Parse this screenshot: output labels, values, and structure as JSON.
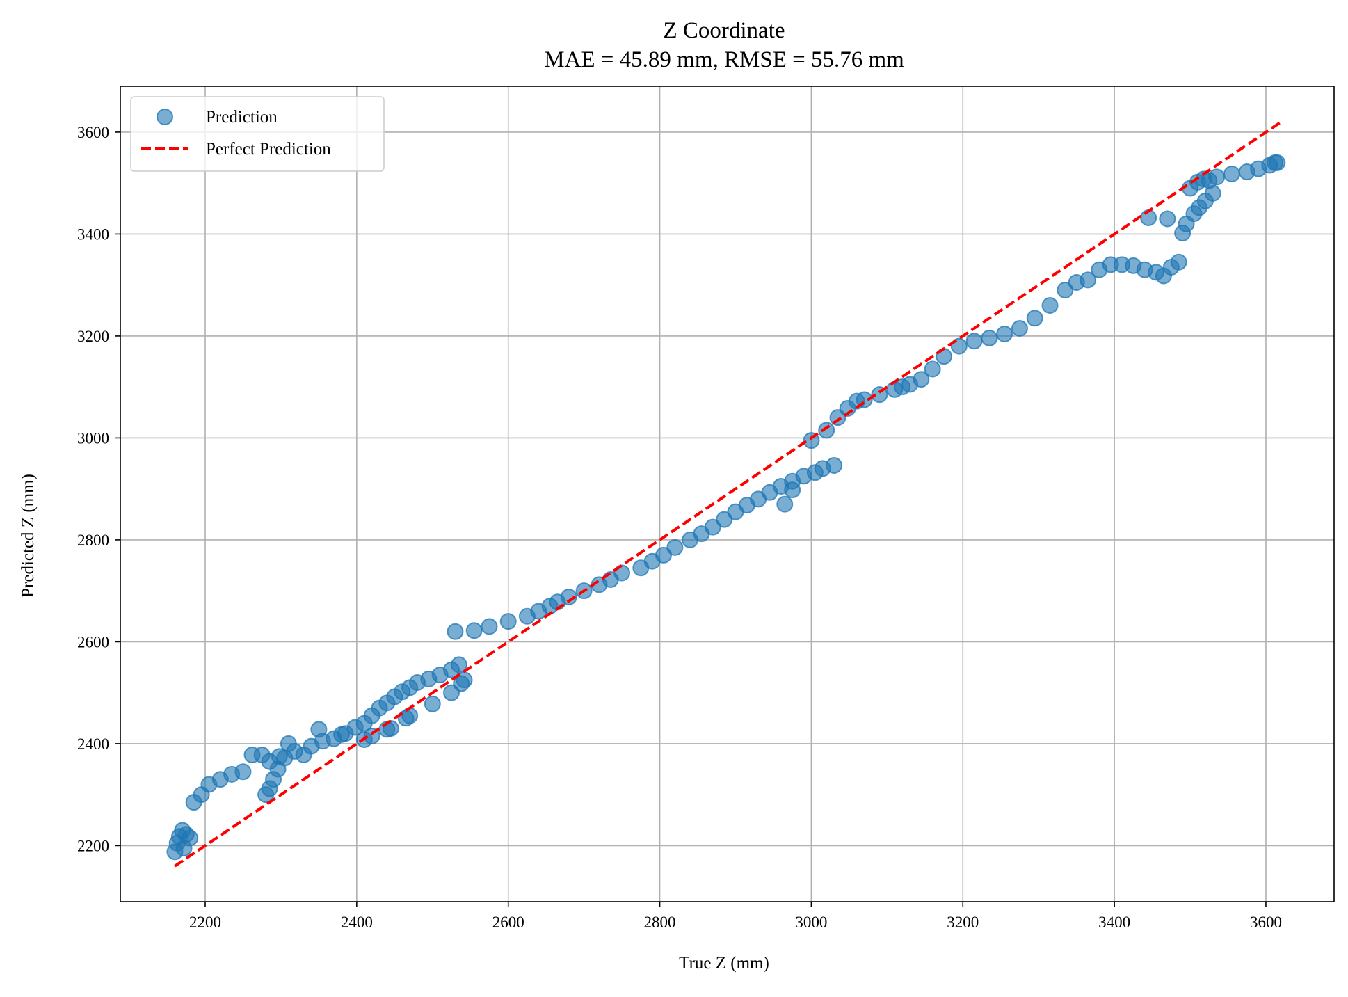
{
  "chart_data": {
    "type": "scatter",
    "title": "Z Coordinate",
    "subtitle": "MAE = 45.89 mm, RMSE = 55.76 mm",
    "xlabel": "True Z (mm)",
    "ylabel": "Predicted Z (mm)",
    "xlim": [
      2088,
      3690
    ],
    "ylim": [
      2090,
      3690
    ],
    "xticks": [
      2200,
      2400,
      2600,
      2800,
      3000,
      3200,
      3400,
      3600
    ],
    "yticks": [
      2200,
      2400,
      2600,
      2800,
      3000,
      3200,
      3400,
      3600
    ],
    "grid": true,
    "legend_position": "upper left",
    "colors": {
      "prediction": "#1f77b4",
      "perfect": "#ff0000",
      "grid": "#b0b0b0"
    },
    "series": [
      {
        "name": "Prediction",
        "kind": "scatter",
        "x": [
          2160,
          2163,
          2166,
          2170,
          2175,
          2180,
          2172,
          2185,
          2195,
          2205,
          2220,
          2235,
          2250,
          2262,
          2275,
          2285,
          2298,
          2310,
          2280,
          2285,
          2290,
          2296,
          2305,
          2318,
          2330,
          2340,
          2355,
          2370,
          2385,
          2398,
          2410,
          2420,
          2430,
          2440,
          2450,
          2460,
          2470,
          2480,
          2495,
          2510,
          2525,
          2535,
          2420,
          2445,
          2470,
          2500,
          2525,
          2538,
          2542,
          2350,
          2380,
          2410,
          2440,
          2465,
          2530,
          2555,
          2575,
          2600,
          2625,
          2640,
          2655,
          2665,
          2680,
          2700,
          2720,
          2735,
          2750,
          2775,
          2790,
          2805,
          2820,
          2840,
          2855,
          2870,
          2885,
          2900,
          2915,
          2930,
          2945,
          2960,
          2975,
          2990,
          3005,
          3015,
          3030,
          2965,
          2975,
          3000,
          3020,
          3035,
          3048,
          3060,
          3070,
          3090,
          3110,
          3120,
          3130,
          3145,
          3160,
          3175,
          3195,
          3215,
          3235,
          3255,
          3275,
          3295,
          3315,
          3335,
          3350,
          3365,
          3380,
          3395,
          3410,
          3425,
          3440,
          3455,
          3465,
          3475,
          3485,
          3490,
          3495,
          3505,
          3512,
          3520,
          3530,
          3445,
          3470,
          3500,
          3510,
          3518,
          3525,
          3535,
          3555,
          3575,
          3590,
          3605,
          3612,
          3615
        ],
        "y": [
          2188,
          2205,
          2218,
          2230,
          2222,
          2215,
          2195,
          2285,
          2300,
          2320,
          2330,
          2340,
          2345,
          2378,
          2378,
          2365,
          2375,
          2400,
          2300,
          2312,
          2330,
          2350,
          2372,
          2385,
          2378,
          2395,
          2405,
          2410,
          2420,
          2432,
          2440,
          2455,
          2470,
          2480,
          2492,
          2502,
          2510,
          2520,
          2527,
          2535,
          2545,
          2555,
          2415,
          2430,
          2455,
          2478,
          2500,
          2518,
          2525,
          2428,
          2418,
          2408,
          2428,
          2450,
          2620,
          2622,
          2630,
          2640,
          2650,
          2660,
          2670,
          2678,
          2688,
          2700,
          2712,
          2722,
          2735,
          2745,
          2758,
          2770,
          2785,
          2800,
          2812,
          2825,
          2840,
          2855,
          2868,
          2880,
          2893,
          2905,
          2915,
          2925,
          2932,
          2940,
          2946,
          2870,
          2898,
          2995,
          3015,
          3040,
          3058,
          3072,
          3075,
          3085,
          3095,
          3100,
          3105,
          3115,
          3135,
          3160,
          3180,
          3190,
          3196,
          3204,
          3215,
          3235,
          3260,
          3290,
          3305,
          3310,
          3330,
          3340,
          3340,
          3338,
          3330,
          3325,
          3318,
          3335,
          3345,
          3402,
          3420,
          3440,
          3452,
          3465,
          3480,
          3432,
          3430,
          3490,
          3502,
          3508,
          3505,
          3512,
          3518,
          3522,
          3528,
          3535,
          3540,
          3540
        ]
      },
      {
        "name": "Perfect Prediction",
        "kind": "line",
        "x": [
          2160,
          3620
        ],
        "y": [
          2160,
          3620
        ]
      }
    ]
  }
}
